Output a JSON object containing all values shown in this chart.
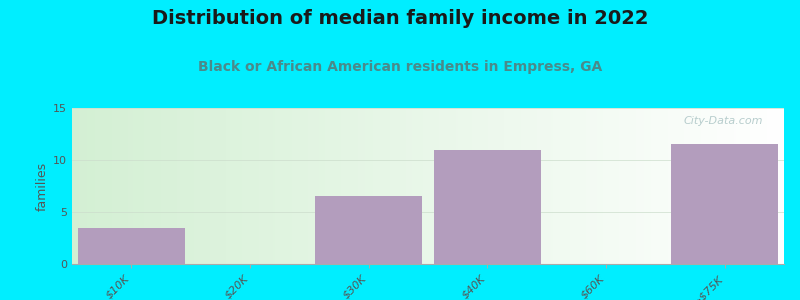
{
  "title": "Distribution of median family income in 2022",
  "subtitle": "Black or African American residents in Empress, GA",
  "categories": [
    "$10K",
    "$20K",
    "$30K",
    "$40K",
    "$60K",
    ">$75K"
  ],
  "values": [
    3.5,
    0,
    6.5,
    11,
    0,
    11.5
  ],
  "bar_color": "#b39dbd",
  "ylabel": "families",
  "ylim": [
    0,
    15
  ],
  "yticks": [
    0,
    5,
    10,
    15
  ],
  "outer_bg": "#00eeff",
  "plot_bg_left": "#d4f0d4",
  "plot_bg_right": "#f0f8f0",
  "title_fontsize": 14,
  "subtitle_fontsize": 10,
  "title_color": "#1a1a1a",
  "subtitle_color": "#4a8a8a",
  "watermark": "City-Data.com",
  "watermark_color": "#b0c8c8"
}
